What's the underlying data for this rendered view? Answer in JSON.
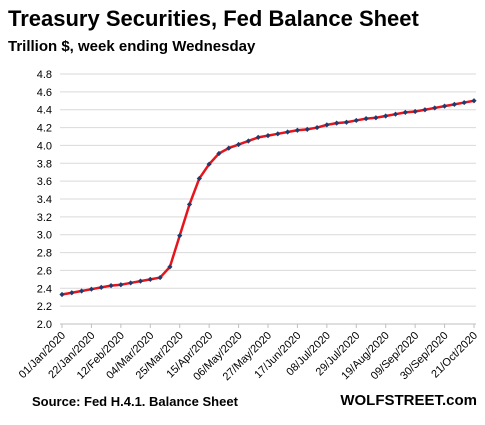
{
  "header": {
    "title": "Treasury Securities, Fed Balance Sheet",
    "subtitle": "Trillion $, week ending Wednesday"
  },
  "footer": {
    "source": "Source: Fed H.4.1. Balance Sheet",
    "brand": "WOLFSTREET.com"
  },
  "colors": {
    "line": "#e8141c",
    "marker": "#1f3c6e",
    "grid": "#d9d9d9",
    "axis": "#bfbfbf"
  },
  "chart_data": {
    "type": "line",
    "ylim": [
      2.0,
      4.8
    ],
    "yticks": [
      "2.0",
      "2.2",
      "2.4",
      "2.6",
      "2.8",
      "3.0",
      "3.2",
      "3.4",
      "3.6",
      "3.8",
      "4.0",
      "4.2",
      "4.4",
      "4.6",
      "4.8"
    ],
    "grid": "horizontal",
    "xtick_labels": [
      "01/Jan/2020",
      "22/Jan/2020",
      "12/Feb/2020",
      "04/Mar/2020",
      "25/Mar/2020",
      "15/Apr/2020",
      "06/May/2020",
      "27/May/2020",
      "17/Jun/2020",
      "08/Jul/2020",
      "29/Jul/2020",
      "19/Aug/2020",
      "09/Sep/2020",
      "30/Sep/2020",
      "21/Oct/2020"
    ],
    "xtick_index": [
      0,
      3,
      6,
      9,
      12,
      15,
      18,
      21,
      24,
      27,
      30,
      33,
      36,
      39,
      42
    ],
    "series": [
      {
        "values": [
          2.33,
          2.35,
          2.37,
          2.39,
          2.41,
          2.43,
          2.44,
          2.46,
          2.48,
          2.5,
          2.52,
          2.64,
          2.99,
          3.34,
          3.63,
          3.79,
          3.91,
          3.97,
          4.01,
          4.05,
          4.09,
          4.11,
          4.13,
          4.15,
          4.17,
          4.18,
          4.2,
          4.23,
          4.25,
          4.26,
          4.28,
          4.3,
          4.31,
          4.33,
          4.35,
          4.37,
          4.38,
          4.4,
          4.42,
          4.44,
          4.46,
          4.48,
          4.5
        ]
      }
    ]
  }
}
